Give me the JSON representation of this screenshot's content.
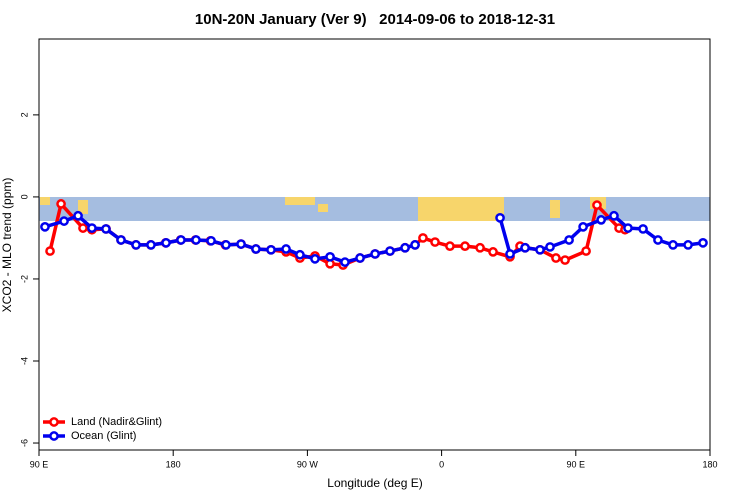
{
  "chart_data": {
    "type": "line",
    "title": "10N-20N January (Ver 9)   2014-09-06 to 2018-12-31",
    "x_label": "Longitude (deg E)",
    "y_label": "XCO2 - MLO trend (ppm)",
    "xlim": [
      90,
      540
    ],
    "ylim": [
      -6.17,
      3.85
    ],
    "xticks": [
      {
        "value": 90,
        "label": "90 E"
      },
      180,
      {
        "value": 270,
        "label": "90 W"
      },
      {
        "value": 360,
        "label": "0"
      },
      {
        "value": 450,
        "label": "90 E"
      },
      {
        "value": 540,
        "label": "180"
      }
    ],
    "yticks": [
      -6,
      -4,
      -2,
      0,
      2
    ],
    "legend": "bottom-left",
    "series": [
      {
        "name": "Land (Nadir&Glint)",
        "color": "#ff0000",
        "x": [
          97.4,
          104.8,
          119.5,
          125.5,
          135,
          145,
          155,
          165,
          175,
          185,
          195,
          205,
          215,
          225.5,
          235.5,
          245.6,
          255.7,
          265,
          275.1,
          285.2,
          293.9,
          305.3,
          315.4,
          325.4,
          335.5,
          342.2,
          347.5,
          355.6,
          365.6,
          375.7,
          385.8,
          394.5,
          405.9,
          412.6,
          416,
          426,
          436.7,
          442.8,
          456.9,
          464.2,
          479,
          483
        ],
        "values": [
          -1.32,
          -0.17,
          -0.76,
          -0.8,
          -0.78,
          -1.05,
          -1.17,
          -1.17,
          -1.12,
          -1.05,
          -1.05,
          -1.07,
          -1.17,
          -1.15,
          -1.27,
          -1.29,
          -1.34,
          -1.49,
          -1.44,
          -1.63,
          -1.66,
          -1.49,
          -1.39,
          -1.32,
          -1.24,
          -1.17,
          -1.0,
          -1.1,
          -1.2,
          -1.2,
          -1.24,
          -1.34,
          -1.46,
          -1.2,
          -1.24,
          -1.29,
          -1.49,
          -1.54,
          -1.32,
          -0.2,
          -0.76,
          -0.8
        ]
      },
      {
        "name": "Ocean (Glint)",
        "color": "#0000ee",
        "x": [
          94,
          106.8,
          116.2,
          125.5,
          134.9,
          145,
          155.1,
          165.1,
          175.2,
          185.2,
          195.3,
          205.4,
          215.4,
          225.5,
          235.5,
          245.6,
          255.7,
          265,
          275.1,
          285.2,
          295.2,
          305.3,
          315.4,
          325.4,
          335.5,
          342.2,
          370,
          399.2,
          405.9,
          416,
          426,
          432.7,
          445.5,
          454.9,
          467,
          475.6,
          485,
          495.1,
          505.1,
          515.2,
          525.3,
          535.3
        ],
        "values": [
          -0.73,
          -0.59,
          -0.46,
          -0.76,
          -0.78,
          -1.05,
          -1.17,
          -1.17,
          -1.12,
          -1.05,
          -1.05,
          -1.07,
          -1.17,
          -1.15,
          -1.27,
          -1.29,
          -1.27,
          -1.41,
          -1.51,
          -1.46,
          -1.59,
          -1.49,
          -1.39,
          -1.32,
          -1.24,
          -1.17,
          null,
          -0.51,
          -1.39,
          -1.24,
          -1.29,
          -1.22,
          -1.05,
          -0.73,
          -0.56,
          -0.46,
          -0.76,
          -0.78,
          -1.05,
          -1.17,
          -1.17,
          -1.12
        ]
      }
    ]
  }
}
